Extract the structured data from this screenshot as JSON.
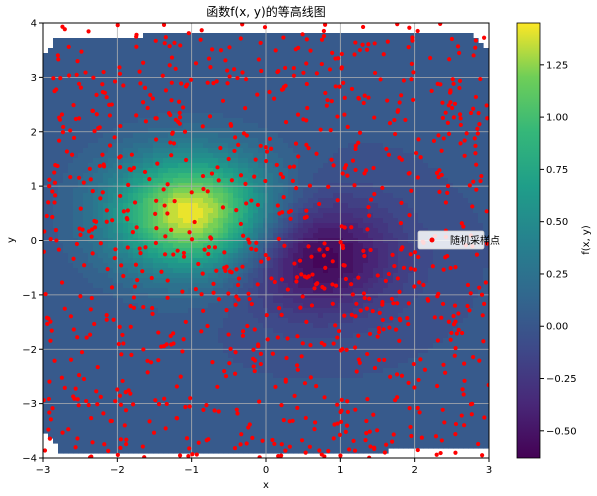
{
  "chart_data": {
    "type": "heatmap",
    "title": "函数f(x, y)的等高线图",
    "xlabel": "x",
    "ylabel": "y",
    "xlim": [
      -3,
      3
    ],
    "ylim": [
      -4,
      4
    ],
    "x_ticks": [
      "−3",
      "−2",
      "−1",
      "0",
      "1",
      "2",
      "3"
    ],
    "y_ticks": [
      "−4",
      "−3",
      "−2",
      "−1",
      "0",
      "1",
      "2",
      "3",
      "4"
    ],
    "grid": true,
    "colormap": "viridis",
    "colorbar": {
      "label": "f(x, y)",
      "range": [
        -0.63,
        1.45
      ],
      "ticks": [
        "−0.50",
        "−0.25",
        "0.00",
        "0.25",
        "0.50",
        "0.75",
        "1.00",
        "1.25"
      ]
    },
    "field": {
      "peak": {
        "x": -1.0,
        "y": 0.5,
        "value": 1.45
      },
      "trough": {
        "x": 0.7,
        "y": -0.3,
        "value": -0.63
      },
      "baseline": 0.0
    },
    "scatter": {
      "name": "随机采样点",
      "color": "#ff0000",
      "n": 1000
    },
    "legend": {
      "position": "right",
      "entries": [
        "随机采样点"
      ]
    }
  }
}
